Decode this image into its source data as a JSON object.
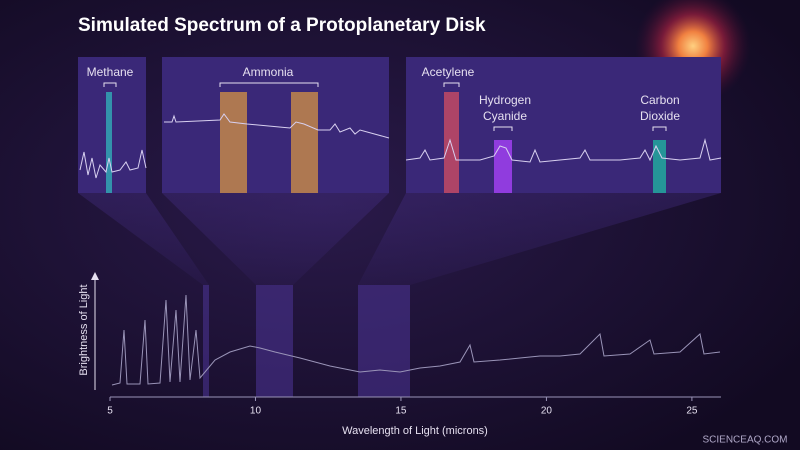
{
  "title": "Simulated Spectrum of a Protoplanetary Disk",
  "insets": [
    {
      "molecules": [
        {
          "label": [
            "Methane"
          ]
        }
      ]
    },
    {
      "molecules": [
        {
          "label": [
            "Ammonia"
          ]
        }
      ]
    },
    {
      "molecules": [
        {
          "label": [
            "Acetylene"
          ]
        },
        {
          "label": [
            "Hydrogen",
            "Cyanide"
          ]
        },
        {
          "label": [
            "Carbon",
            "Dioxide"
          ]
        }
      ]
    }
  ],
  "main": {
    "xlabel": "Wavelength of Light (microns)",
    "ylabel": "Brightness of Light",
    "xlim": [
      5,
      26
    ],
    "xticks": [
      5,
      10,
      15,
      20,
      25
    ]
  },
  "watermark": "SCIENCEAQ.COM"
}
